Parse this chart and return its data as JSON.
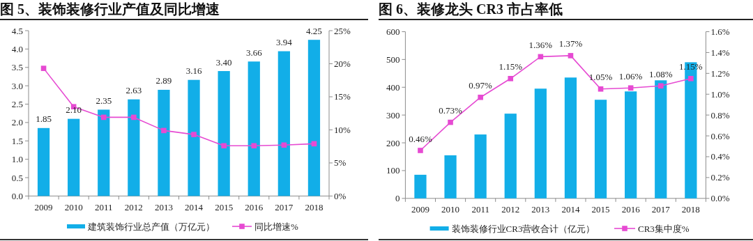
{
  "chart_data": [
    {
      "type": "bar",
      "title": "图 5、装饰装修行业产值及同比增速",
      "categories": [
        "2009",
        "2010",
        "2011",
        "2012",
        "2013",
        "2014",
        "2015",
        "2016",
        "2017",
        "2018"
      ],
      "series": [
        {
          "name": "建筑装饰行业总产值（万亿元）",
          "color": "#12aee8",
          "values": [
            1.85,
            2.1,
            2.35,
            2.63,
            2.89,
            3.16,
            3.4,
            3.66,
            3.94,
            4.25
          ],
          "value_labels": [
            "1.85",
            "2.10",
            "2.35",
            "2.63",
            "2.89",
            "3.16",
            "3.40",
            "3.66",
            "3.94",
            "4.25"
          ]
        },
        {
          "name": "同比增速%",
          "type": "line",
          "axis": "y2",
          "color": "#e64ad2",
          "marker": "square",
          "values": [
            19.3,
            13.5,
            11.9,
            11.9,
            9.9,
            9.3,
            7.6,
            7.6,
            7.7,
            7.9
          ]
        }
      ],
      "ylim": [
        0,
        4.5
      ],
      "yticks": [
        {
          "value": 0,
          "label": "0.0"
        },
        0.5,
        {
          "value": 1,
          "label": "1.0"
        },
        1.5,
        {
          "value": 2,
          "label": "2.0"
        },
        2.5,
        {
          "value": 3,
          "label": "3.0"
        },
        3.5,
        {
          "value": 4,
          "label": "4.0"
        },
        4.5
      ],
      "y2lim": [
        0,
        25
      ],
      "y2ticks": [
        {
          "value": 0,
          "label": "0%"
        },
        {
          "value": 5,
          "label": "5%"
        },
        {
          "value": 10,
          "label": "10%"
        },
        {
          "value": 15,
          "label": "15%"
        },
        {
          "value": 20,
          "label": "20%"
        },
        {
          "value": 25,
          "label": "25%"
        }
      ],
      "legend": "bottom"
    },
    {
      "type": "bar",
      "title": "图 6、装修龙头 CR3 市占率低",
      "categories": [
        "2009",
        "2010",
        "2011",
        "2012",
        "2013",
        "2014",
        "2015",
        "2016",
        "2017",
        "2018"
      ],
      "series": [
        {
          "name": "装饰装修行业CR3营收合计（亿元）",
          "color": "#12aee8",
          "values": [
            85,
            155,
            230,
            305,
            395,
            435,
            355,
            385,
            425,
            490
          ]
        },
        {
          "name": "CR3集中度%",
          "type": "line",
          "axis": "y2",
          "color": "#e64ad2",
          "marker": "square",
          "values": [
            0.46,
            0.73,
            0.97,
            1.15,
            1.36,
            1.37,
            1.05,
            1.06,
            1.08,
            1.15
          ],
          "value_labels": [
            "0.46%",
            "0.73%",
            "0.97%",
            "1.15%",
            "1.36%",
            "1.37%",
            "1.05%",
            "1.06%",
            "1.08%",
            "1.15%"
          ]
        }
      ],
      "ylim": [
        0,
        600
      ],
      "yticks": [
        0,
        100,
        200,
        300,
        400,
        500,
        600
      ],
      "y2lim": [
        0,
        1.6
      ],
      "y2ticks": [
        {
          "value": 0,
          "label": "0.0%"
        },
        {
          "value": 0.2,
          "label": "0.2%"
        },
        {
          "value": 0.4,
          "label": "0.4%"
        },
        {
          "value": 0.6,
          "label": "0.6%"
        },
        {
          "value": 0.8,
          "label": "0.8%"
        },
        {
          "value": 1.0,
          "label": "1.0%"
        },
        {
          "value": 1.2,
          "label": "1.2%"
        },
        {
          "value": 1.4,
          "label": "1.4%"
        },
        {
          "value": 1.6,
          "label": "1.6%"
        }
      ],
      "legend": "bottom"
    }
  ]
}
